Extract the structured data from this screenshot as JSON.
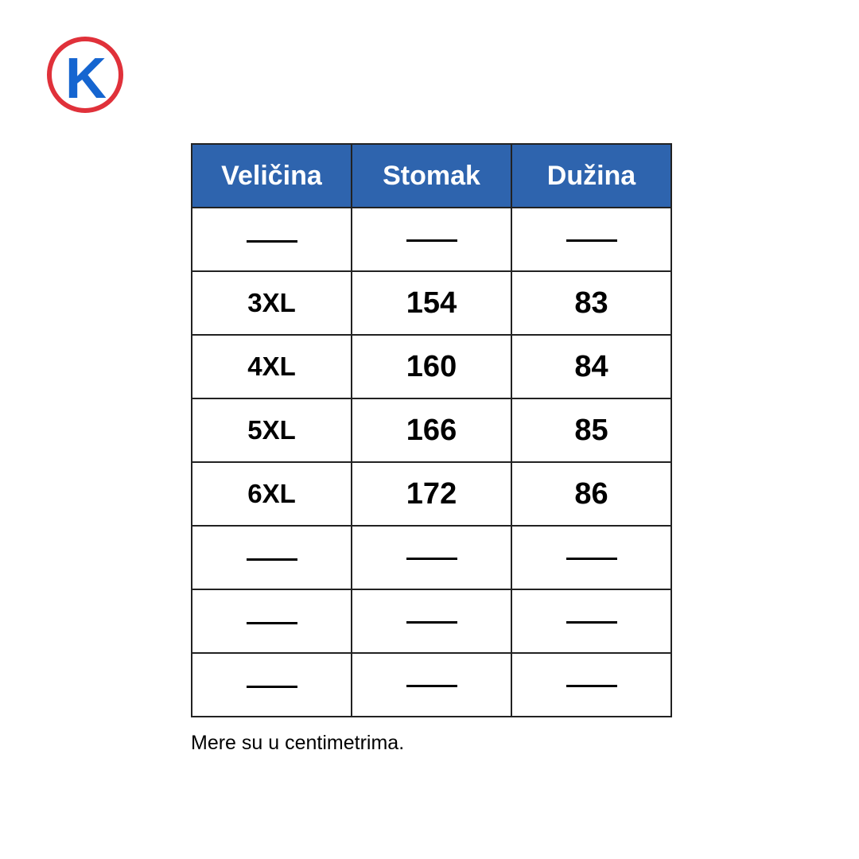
{
  "logo": {
    "letter": "K",
    "ring_color": "#e0313a",
    "letter_color": "#1565d0"
  },
  "table": {
    "header_color": "#2e64ae",
    "headers": [
      "Veličina",
      "Stomak",
      "Dužina"
    ],
    "rows": [
      [
        "—",
        "—",
        "—"
      ],
      [
        "3XL",
        "154",
        "83"
      ],
      [
        "4XL",
        "160",
        "84"
      ],
      [
        "5XL",
        "166",
        "85"
      ],
      [
        "6XL",
        "172",
        "86"
      ],
      [
        "—",
        "—",
        "—"
      ],
      [
        "—",
        "—",
        "—"
      ],
      [
        "—",
        "—",
        "—"
      ]
    ]
  },
  "caption": "Mere su u centimetrima."
}
